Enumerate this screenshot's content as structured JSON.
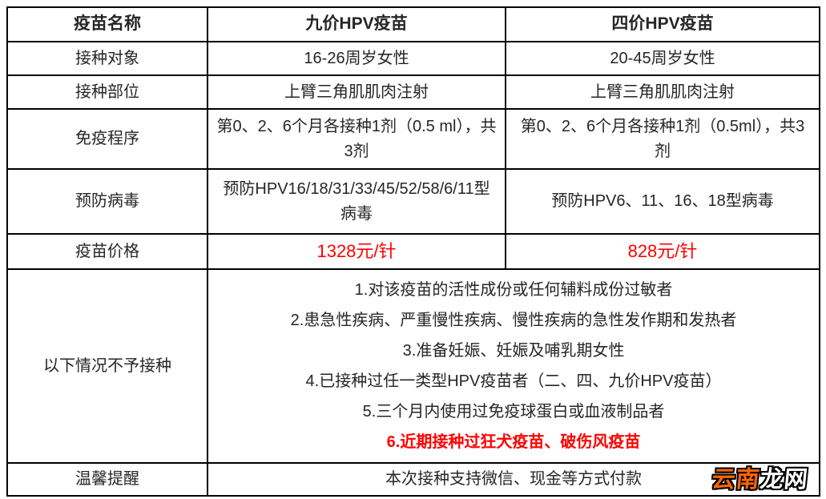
{
  "table": {
    "header": {
      "name_label": "疫苗名称",
      "nine_valent": "九价HPV疫苗",
      "four_valent": "四价HPV疫苗"
    },
    "rows": {
      "target": {
        "label": "接种对象",
        "nine": "16-26周岁女性",
        "four": "20-45周岁女性"
      },
      "site": {
        "label": "接种部位",
        "nine": "上臂三角肌肌肉注射",
        "four": "上臂三角肌肌肉注射"
      },
      "schedule": {
        "label": "免疫程序",
        "nine": "第0、2、6个月各接种1剂（0.5 ml），共3剂",
        "four": "第0、2、6个月各接种1剂（0.5ml），共3剂"
      },
      "virus": {
        "label": "预防病毒",
        "nine": "预防HPV16/18/31/33/45/52/58/6/11型病毒",
        "four": "预防HPV6、11、16、18型病毒"
      },
      "price": {
        "label": "疫苗价格",
        "nine": "1328元/针",
        "four": "828元/针"
      }
    },
    "contra": {
      "label": "以下情况不予接种",
      "items": [
        "1.对该疫苗的活性成份或任何辅料成份过敏者",
        "2.患急性疾病、严重慢性疾病、慢性疾病的急性发作期和发热者",
        "3.准备妊娠、妊娠及哺乳期女性",
        "4.已接种过任一类型HPV疫苗者（二、四、九价HPV疫苗）",
        "5.三个月内使用过免疫球蛋白或血液制品者",
        "6.近期接种过狂犬疫苗、破伤风疫苗"
      ]
    },
    "reminder": {
      "label": "温馨提醒",
      "text": "本次接种支持微信、现金等方式付款"
    }
  },
  "watermark": {
    "part_orange": "云南",
    "part_white": "龙网"
  },
  "colors": {
    "text": "#262626",
    "border": "#000000",
    "highlight_red": "#ff0000",
    "watermark_orange": "#ff6600",
    "watermark_white": "#ffffff"
  }
}
